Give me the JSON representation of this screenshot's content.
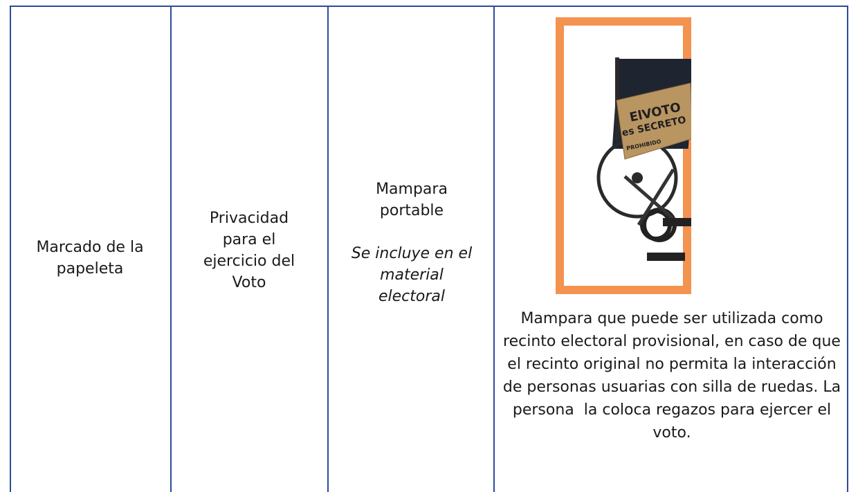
{
  "table": {
    "row": {
      "cells": [
        {
          "text": "Marcado de la papeleta"
        },
        {
          "text": "Privacidad para el ejercicio del Voto"
        },
        {
          "title": "Mampara portable",
          "note": "Se incluye en el material electoral"
        },
        {
          "image": {
            "box_text": [
              "ElVOTO",
              "es SECRETO",
              "PROHIBIDO"
            ]
          },
          "caption": "Mampara que puede ser utilizada como recinto electoral provisional, en caso de que el recinto original no permita la interacción de personas usuarias con silla de ruedas. La persona  la coloca regazos para ejercer el voto."
        }
      ]
    }
  }
}
